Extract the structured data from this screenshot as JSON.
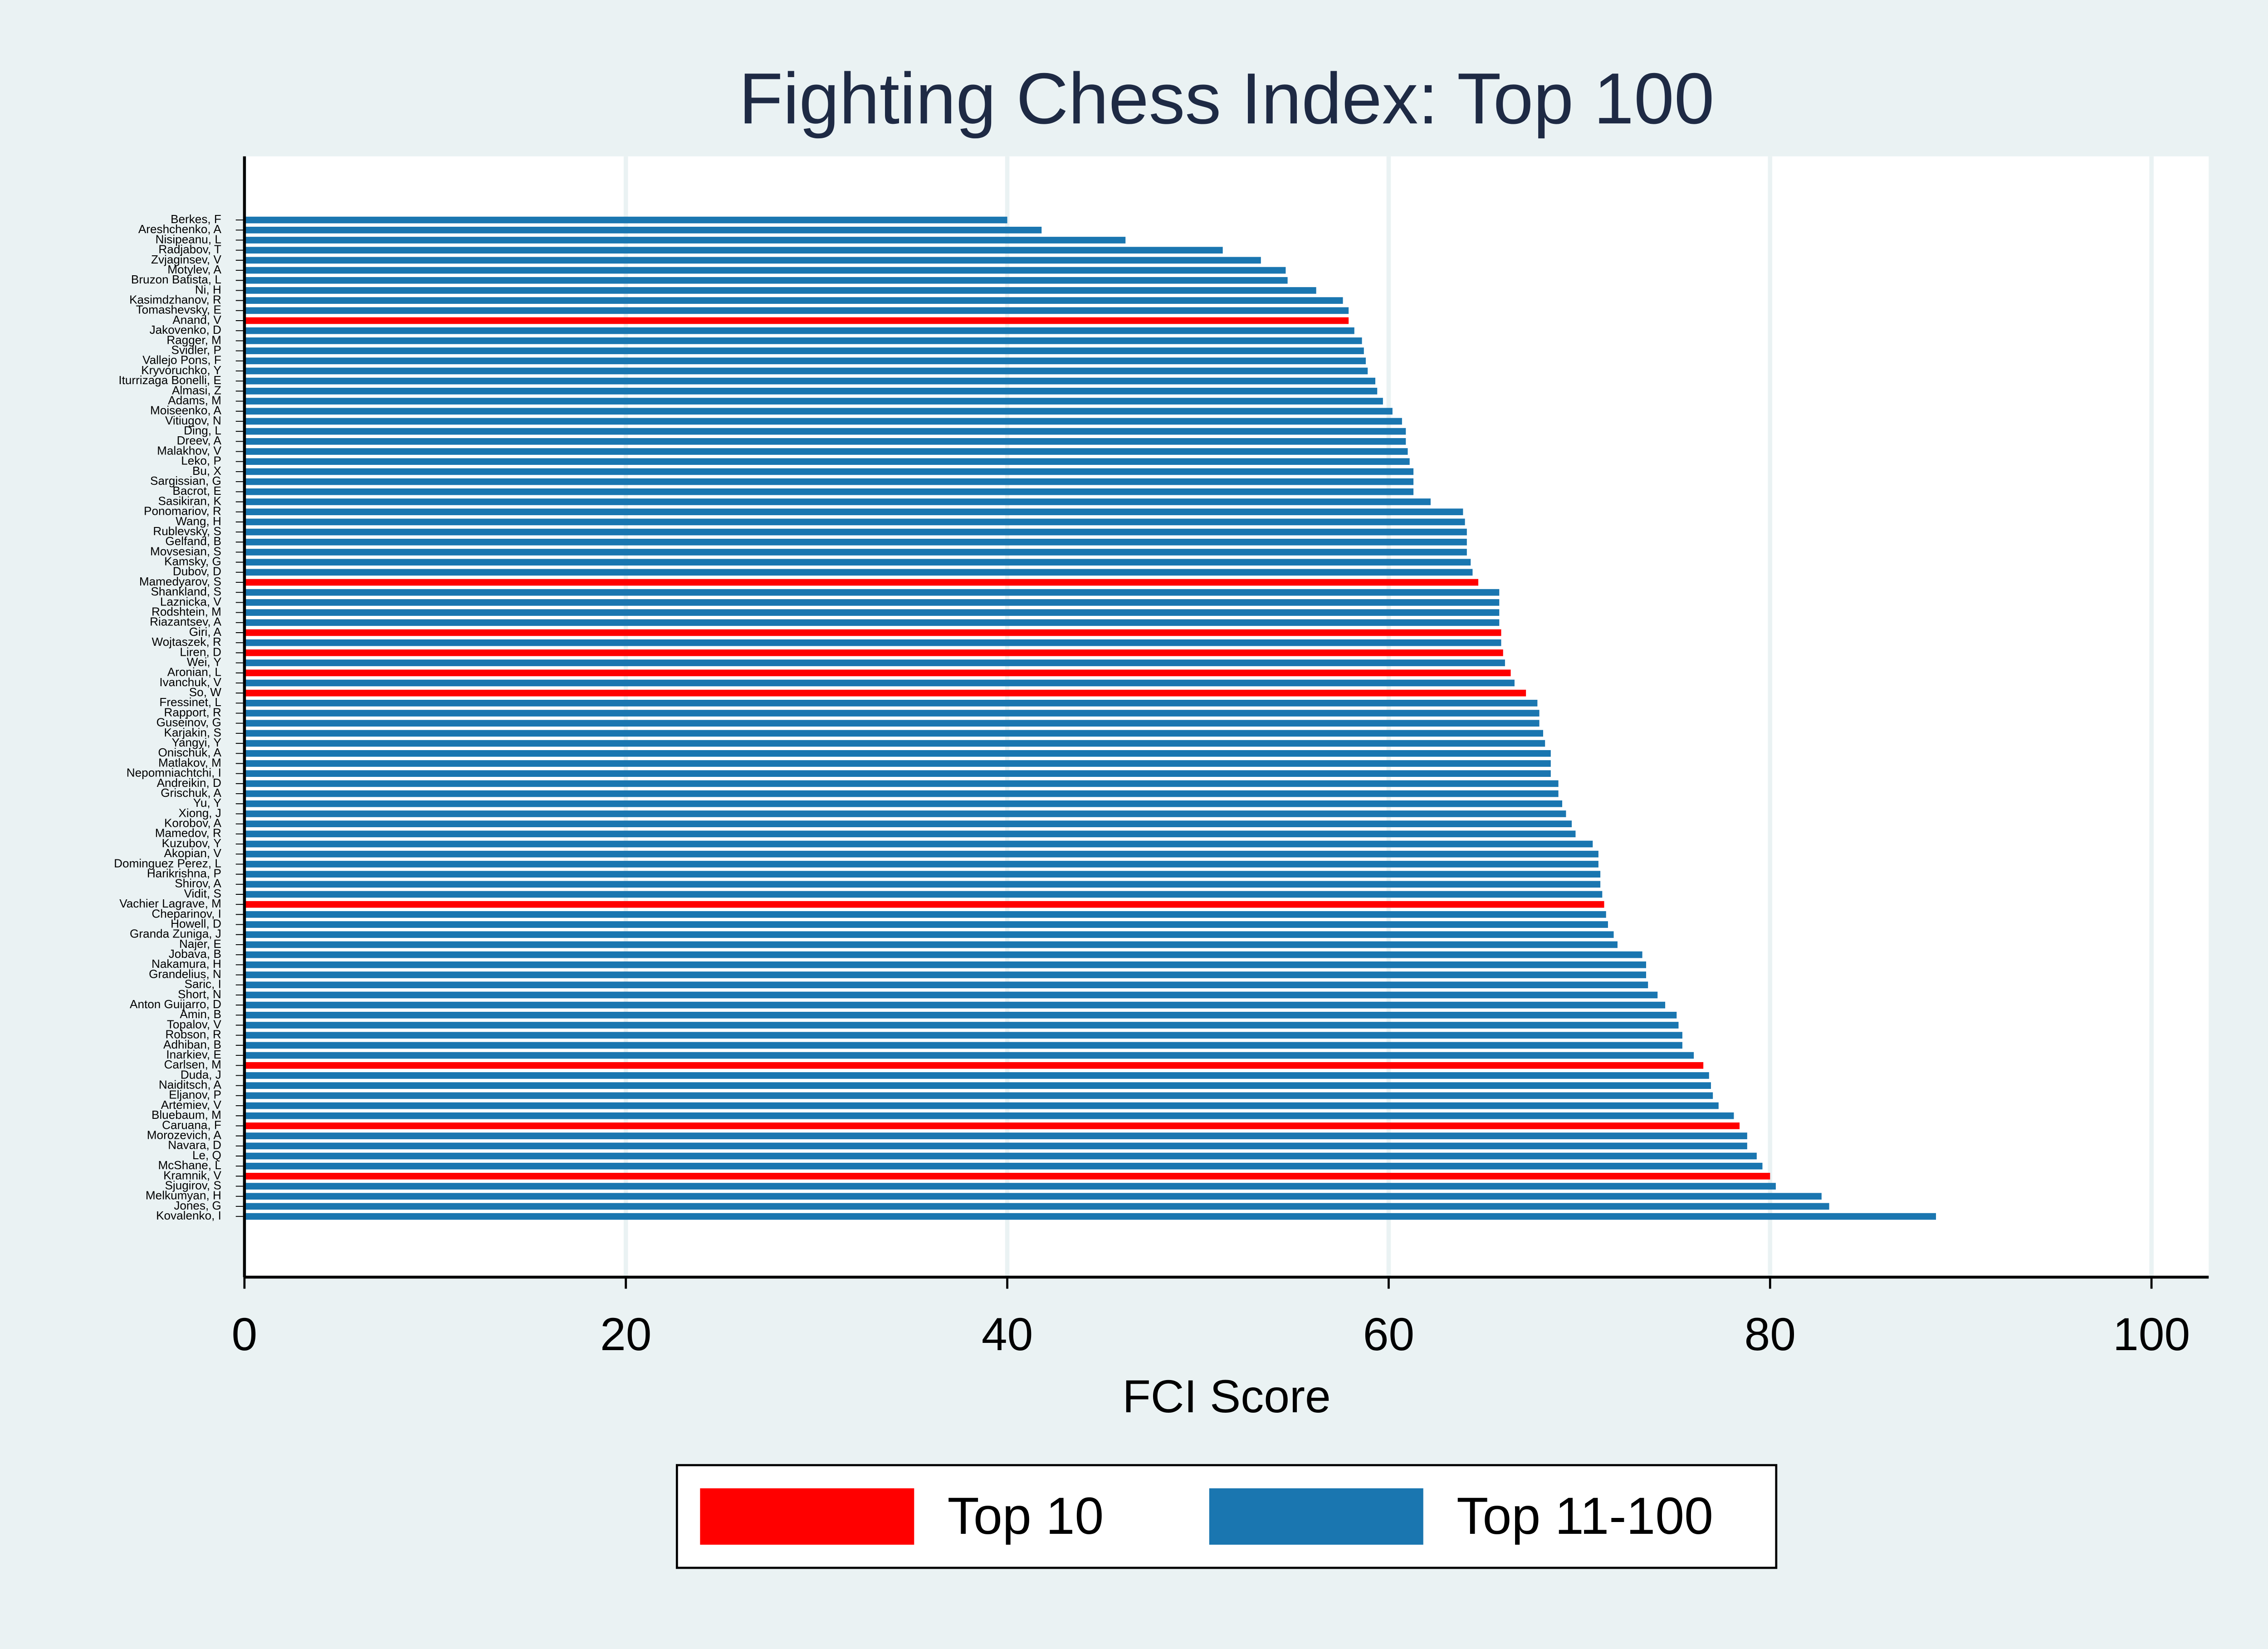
{
  "chart_data": {
    "type": "bar",
    "orientation": "horizontal",
    "title": "Fighting Chess Index: Top 100",
    "x_label": "FCI Score",
    "categories": [
      "Berkes, F",
      "Areshchenko, A",
      "Nisipeanu, L",
      "Radjabov, T",
      "Zvjaginsev, V",
      "Motylev, A",
      "Bruzon Batista, L",
      "Ni, H",
      "Kasimdzhanov, R",
      "Tomashevsky, E",
      "Anand, V",
      "Jakovenko, D",
      "Ragger, M",
      "Svidler, P",
      "Vallejo Pons, F",
      "Kryvoruchko, Y",
      "Iturrizaga Bonelli, E",
      "Almasi, Z",
      "Adams, M",
      "Moiseenko, A",
      "Vitiugov, N",
      "Ding, L",
      "Dreev, A",
      "Malakhov, V",
      "Leko, P",
      "Bu, X",
      "Sargissian, G",
      "Bacrot, E",
      "Sasikiran, K",
      "Ponomariov, R",
      "Wang, H",
      "Rublevsky, S",
      "Gelfand, B",
      "Movsesian, S",
      "Kamsky, G",
      "Dubov, D",
      "Mamedyarov, S",
      "Shankland, S",
      "Laznicka, V",
      "Rodshtein, M",
      "Riazantsev, A",
      "Giri, A",
      "Wojtaszek, R",
      "Liren, D",
      "Wei, Y",
      "Aronian, L",
      "Ivanchuk, V",
      "So, W",
      "Fressinet, L",
      "Rapport, R",
      "Guseinov, G",
      "Karjakin, S",
      "Yangyi, Y",
      "Onischuk, A",
      "Matlakov, M",
      "Nepomniachtchi, I",
      "Andreikin, D",
      "Grischuk, A",
      "Yu, Y",
      "Xiong, J",
      "Korobov, A",
      "Mamedov, R",
      "Kuzubov, Y",
      "Akopian, V",
      "Dominguez Perez, L",
      "Harikrishna, P",
      "Shirov, A",
      "Vidit, S",
      "Vachier Lagrave, M",
      "Cheparinov, I",
      "Howell, D",
      "Granda Zuniga, J",
      "Najer, E",
      "Jobava, B",
      "Nakamura, H",
      "Grandelius, N",
      "Saric, I",
      "Short, N",
      "Anton Guijarro, D",
      "Amin, B",
      "Topalov, V",
      "Robson, R",
      "Adhiban, B",
      "Inarkiev, E",
      "Carlsen, M",
      "Duda, J",
      "Naiditsch, A",
      "Eljanov, P",
      "Artemiev, V",
      "Bluebaum, M",
      "Caruana, F",
      "Morozevich, A",
      "Navara, D",
      "Le, Q",
      "McShane, L",
      "Kramnik, V",
      "Sjugirov, S",
      "Melkumyan, H",
      "Jones, G",
      "Kovalenko, I"
    ],
    "series": [
      {
        "name": "Top 10",
        "color": "#ff0000",
        "values": [
          null,
          null,
          null,
          null,
          null,
          null,
          null,
          null,
          null,
          null,
          57.9,
          null,
          null,
          null,
          null,
          null,
          null,
          null,
          null,
          null,
          null,
          null,
          null,
          null,
          null,
          null,
          null,
          null,
          null,
          null,
          null,
          null,
          null,
          null,
          null,
          null,
          64.7,
          null,
          null,
          null,
          null,
          65.9,
          null,
          66.0,
          null,
          66.4,
          null,
          67.2,
          null,
          null,
          null,
          null,
          null,
          null,
          null,
          null,
          null,
          null,
          null,
          null,
          null,
          null,
          null,
          null,
          null,
          null,
          null,
          null,
          71.3,
          null,
          null,
          null,
          null,
          null,
          null,
          null,
          null,
          null,
          null,
          null,
          null,
          null,
          null,
          null,
          76.5,
          null,
          null,
          null,
          null,
          null,
          78.4,
          null,
          null,
          null,
          null,
          80.0,
          null,
          null,
          null,
          null
        ]
      },
      {
        "name": "Top 11-100",
        "color": "#1a76b0",
        "values": [
          40.0,
          41.8,
          46.2,
          51.3,
          53.3,
          54.6,
          54.7,
          56.2,
          57.6,
          57.9,
          null,
          58.2,
          58.6,
          58.7,
          58.8,
          58.9,
          59.3,
          59.4,
          59.7,
          60.2,
          60.7,
          60.9,
          60.9,
          61.0,
          61.1,
          61.3,
          61.3,
          61.3,
          62.2,
          63.9,
          64.0,
          64.1,
          64.1,
          64.1,
          64.3,
          64.4,
          null,
          65.8,
          65.8,
          65.8,
          65.8,
          null,
          65.9,
          null,
          66.1,
          null,
          66.6,
          null,
          67.8,
          67.9,
          67.9,
          68.1,
          68.2,
          68.5,
          68.5,
          68.5,
          68.9,
          68.9,
          69.1,
          69.3,
          69.6,
          69.8,
          70.7,
          71.0,
          71.0,
          71.1,
          71.1,
          71.2,
          null,
          71.4,
          71.5,
          71.8,
          72.0,
          73.3,
          73.5,
          73.5,
          73.6,
          74.1,
          74.5,
          75.1,
          75.2,
          75.4,
          75.4,
          76.0,
          null,
          76.8,
          76.9,
          77.0,
          77.3,
          78.1,
          null,
          78.8,
          78.8,
          79.3,
          79.6,
          null,
          80.3,
          82.7,
          83.1,
          88.7
        ]
      }
    ],
    "xlim": [
      0,
      103
    ],
    "xticks": [
      0,
      20,
      40,
      60,
      80,
      100
    ],
    "grid": true,
    "legend": "bottom"
  }
}
